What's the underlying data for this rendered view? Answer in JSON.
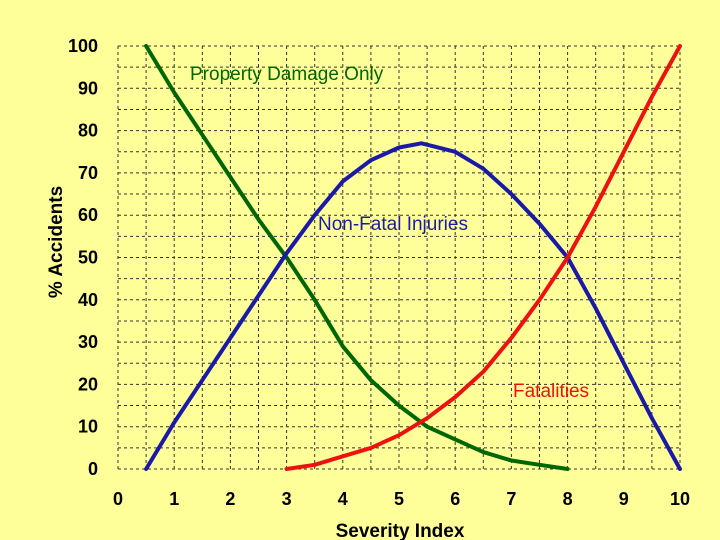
{
  "chart_data": {
    "type": "line",
    "xlabel": "Severity Index",
    "ylabel": "% Accidents",
    "xlim": [
      0,
      10
    ],
    "ylim": [
      0,
      100
    ],
    "x_ticks": [
      0,
      1,
      2,
      3,
      4,
      5,
      6,
      7,
      8,
      9,
      10
    ],
    "y_ticks": [
      0,
      10,
      20,
      30,
      40,
      50,
      60,
      70,
      80,
      90,
      100
    ],
    "grid": "minor-and-major dashed, dark",
    "series": [
      {
        "name": "Property Damage Only",
        "color": "#006600",
        "x": [
          0.5,
          1.0,
          1.5,
          2.0,
          2.5,
          3.0,
          3.5,
          4.0,
          4.5,
          5.0,
          5.5,
          6.0,
          6.5,
          7.0,
          7.5,
          8.0
        ],
        "y": [
          100,
          89,
          79,
          69,
          59,
          50,
          40,
          29,
          21,
          15,
          10,
          7,
          4,
          2,
          1,
          0
        ]
      },
      {
        "name": "Non-Fatal Injuries",
        "color": "#1a1aa6",
        "x": [
          0.5,
          1.0,
          1.5,
          2.0,
          2.5,
          3.0,
          3.5,
          4.0,
          4.5,
          5.0,
          5.4,
          6.0,
          6.5,
          7.0,
          7.5,
          8.0,
          8.5,
          9.0,
          9.5,
          10.0
        ],
        "y": [
          0,
          11,
          21,
          31,
          41,
          51,
          60,
          68,
          73,
          76,
          77,
          75,
          71,
          65,
          58,
          50,
          38,
          25,
          12,
          0
        ]
      },
      {
        "name": "Fatalities",
        "color": "#ee1111",
        "x": [
          3.0,
          3.5,
          4.0,
          4.5,
          5.0,
          5.5,
          6.0,
          6.5,
          7.0,
          7.5,
          8.0,
          8.5,
          9.0,
          9.5,
          10.0
        ],
        "y": [
          0,
          1,
          3,
          5,
          8,
          12,
          17,
          23,
          31,
          40,
          50,
          62,
          75,
          88,
          100
        ]
      }
    ],
    "annotations": [
      {
        "text": "Property Damage Only",
        "series": 0
      },
      {
        "text": "Non-Fatal Injuries",
        "series": 1
      },
      {
        "text": "Fatalities",
        "series": 2
      }
    ]
  }
}
